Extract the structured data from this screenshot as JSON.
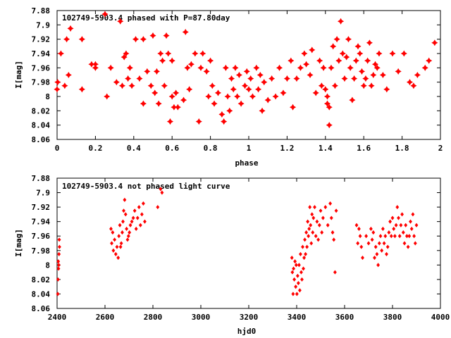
{
  "chart_data": [
    {
      "type": "scatter",
      "title": "102749-5903.4 phased with P=87.80day",
      "xlabel": "phase",
      "ylabel": "I[mag]",
      "xlim": [
        0,
        2
      ],
      "ylim": [
        8.06,
        7.88
      ],
      "x_ticks": [
        "0",
        "0.2",
        "0.4",
        "0.6",
        "0.8",
        "1",
        "1.2",
        "1.4",
        "1.6",
        "1.8",
        "2"
      ],
      "y_ticks": [
        "7.88",
        "7.9",
        "7.92",
        "7.94",
        "7.96",
        "7.98",
        "8",
        "8.02",
        "8.04",
        "8.06"
      ],
      "marker_color": "#ff0000",
      "grid": false,
      "points": [
        [
          0.0,
          7.99
        ],
        [
          0.003,
          7.98
        ],
        [
          0.02,
          7.94
        ],
        [
          0.04,
          7.985
        ],
        [
          0.05,
          7.92
        ],
        [
          0.06,
          7.97
        ],
        [
          0.07,
          7.905
        ],
        [
          0.13,
          7.92
        ],
        [
          0.13,
          7.99
        ],
        [
          0.18,
          7.955
        ],
        [
          0.2,
          7.955
        ],
        [
          0.2,
          7.96
        ],
        [
          0.25,
          7.885
        ],
        [
          0.26,
          8.0
        ],
        [
          0.28,
          7.96
        ],
        [
          0.31,
          7.98
        ],
        [
          0.33,
          7.895
        ],
        [
          0.34,
          7.985
        ],
        [
          0.35,
          7.945
        ],
        [
          0.36,
          7.94
        ],
        [
          0.37,
          7.975
        ],
        [
          0.38,
          7.96
        ],
        [
          0.39,
          7.985
        ],
        [
          0.41,
          7.92
        ],
        [
          0.43,
          7.975
        ],
        [
          0.45,
          8.01
        ],
        [
          0.45,
          7.92
        ],
        [
          0.47,
          7.965
        ],
        [
          0.49,
          7.985
        ],
        [
          0.5,
          7.915
        ],
        [
          0.51,
          7.995
        ],
        [
          0.52,
          7.965
        ],
        [
          0.53,
          8.01
        ],
        [
          0.54,
          7.94
        ],
        [
          0.55,
          7.95
        ],
        [
          0.56,
          7.985
        ],
        [
          0.57,
          7.915
        ],
        [
          0.58,
          7.94
        ],
        [
          0.59,
          8.035
        ],
        [
          0.6,
          8.0
        ],
        [
          0.6,
          7.95
        ],
        [
          0.61,
          8.015
        ],
        [
          0.62,
          7.995
        ],
        [
          0.63,
          8.015
        ],
        [
          0.66,
          8.005
        ],
        [
          0.67,
          7.91
        ],
        [
          0.68,
          7.96
        ],
        [
          0.69,
          7.99
        ],
        [
          0.7,
          7.955
        ],
        [
          0.72,
          7.94
        ],
        [
          0.74,
          8.035
        ],
        [
          0.75,
          7.96
        ],
        [
          0.76,
          7.94
        ],
        [
          0.78,
          7.965
        ],
        [
          0.79,
          8.0
        ],
        [
          0.8,
          7.95
        ],
        [
          0.81,
          7.985
        ],
        [
          0.82,
          8.01
        ],
        [
          0.84,
          7.995
        ],
        [
          0.86,
          8.025
        ],
        [
          0.87,
          8.035
        ],
        [
          0.88,
          7.96
        ],
        [
          0.89,
          8.0
        ],
        [
          0.9,
          8.02
        ],
        [
          0.91,
          7.975
        ],
        [
          0.92,
          7.99
        ],
        [
          0.93,
          7.96
        ],
        [
          0.94,
          8.0
        ],
        [
          0.95,
          7.97
        ],
        [
          0.96,
          8.01
        ],
        [
          0.98,
          7.985
        ],
        [
          0.99,
          7.965
        ],
        [
          1.0,
          7.99
        ],
        [
          1.01,
          7.975
        ],
        [
          1.02,
          8.0
        ],
        [
          1.04,
          7.96
        ],
        [
          1.05,
          7.99
        ],
        [
          1.06,
          7.97
        ],
        [
          1.07,
          8.02
        ],
        [
          1.08,
          7.98
        ],
        [
          1.1,
          8.005
        ],
        [
          1.12,
          7.975
        ],
        [
          1.14,
          8.0
        ],
        [
          1.16,
          7.96
        ],
        [
          1.18,
          7.995
        ],
        [
          1.2,
          7.975
        ],
        [
          1.22,
          7.95
        ],
        [
          1.23,
          8.015
        ],
        [
          1.25,
          7.975
        ],
        [
          1.27,
          7.96
        ],
        [
          1.29,
          7.94
        ],
        [
          1.3,
          7.955
        ],
        [
          1.32,
          7.97
        ],
        [
          1.33,
          7.935
        ],
        [
          1.35,
          7.995
        ],
        [
          1.37,
          7.95
        ],
        [
          1.38,
          7.985
        ],
        [
          1.39,
          7.96
        ],
        [
          1.4,
          7.99
        ],
        [
          1.41,
          8.0
        ],
        [
          1.41,
          8.01
        ],
        [
          1.42,
          8.015
        ],
        [
          1.42,
          8.04
        ],
        [
          1.43,
          7.96
        ],
        [
          1.44,
          7.93
        ],
        [
          1.45,
          7.985
        ],
        [
          1.46,
          7.92
        ],
        [
          1.47,
          7.95
        ],
        [
          1.48,
          7.895
        ],
        [
          1.49,
          7.94
        ],
        [
          1.5,
          7.975
        ],
        [
          1.51,
          7.945
        ],
        [
          1.52,
          7.92
        ],
        [
          1.53,
          7.96
        ],
        [
          1.54,
          8.005
        ],
        [
          1.55,
          7.975
        ],
        [
          1.56,
          7.95
        ],
        [
          1.57,
          7.93
        ],
        [
          1.58,
          7.94
        ],
        [
          1.59,
          7.965
        ],
        [
          1.6,
          7.985
        ],
        [
          1.61,
          7.975
        ],
        [
          1.62,
          7.95
        ],
        [
          1.63,
          7.925
        ],
        [
          1.64,
          7.985
        ],
        [
          1.65,
          7.97
        ],
        [
          1.66,
          7.955
        ],
        [
          1.67,
          7.96
        ],
        [
          1.68,
          7.94
        ],
        [
          1.7,
          7.97
        ],
        [
          1.72,
          7.99
        ],
        [
          1.75,
          7.94
        ],
        [
          1.78,
          7.965
        ],
        [
          1.81,
          7.94
        ],
        [
          1.84,
          7.98
        ],
        [
          1.86,
          7.985
        ],
        [
          1.88,
          7.97
        ],
        [
          1.92,
          7.96
        ],
        [
          1.94,
          7.95
        ],
        [
          1.97,
          7.925
        ]
      ]
    },
    {
      "type": "scatter",
      "title": "102749-5903.4 not phased light curve",
      "xlabel": "hjd0",
      "ylabel": "I[mag]",
      "xlim": [
        2400,
        4000
      ],
      "ylim": [
        8.06,
        7.88
      ],
      "x_ticks": [
        "2400",
        "2600",
        "2800",
        "3000",
        "3200",
        "3400",
        "3600",
        "3800",
        "4000"
      ],
      "y_ticks": [
        "7.88",
        "7.9",
        "7.92",
        "7.94",
        "7.96",
        "7.98",
        "8",
        "8.02",
        "8.04",
        "8.06"
      ],
      "marker_color": "#ff0000",
      "grid": false,
      "points": [
        [
          2403,
          8.04
        ],
        [
          2404,
          8.02
        ],
        [
          2405,
          7.995
        ],
        [
          2406,
          8.005
        ],
        [
          2407,
          8.0
        ],
        [
          2408,
          7.985
        ],
        [
          2409,
          7.965
        ],
        [
          2410,
          7.975
        ],
        [
          2625,
          7.95
        ],
        [
          2628,
          7.97
        ],
        [
          2632,
          7.955
        ],
        [
          2635,
          7.98
        ],
        [
          2640,
          7.965
        ],
        [
          2645,
          7.985
        ],
        [
          2650,
          7.975
        ],
        [
          2655,
          7.99
        ],
        [
          2658,
          7.96
        ],
        [
          2662,
          7.945
        ],
        [
          2665,
          7.975
        ],
        [
          2668,
          7.97
        ],
        [
          2672,
          7.955
        ],
        [
          2675,
          7.94
        ],
        [
          2678,
          7.925
        ],
        [
          2682,
          7.91
        ],
        [
          2686,
          7.93
        ],
        [
          2690,
          7.95
        ],
        [
          2694,
          7.965
        ],
        [
          2698,
          7.96
        ],
        [
          2702,
          7.955
        ],
        [
          2706,
          7.945
        ],
        [
          2712,
          7.94
        ],
        [
          2718,
          7.935
        ],
        [
          2724,
          7.925
        ],
        [
          2730,
          7.95
        ],
        [
          2736,
          7.935
        ],
        [
          2742,
          7.92
        ],
        [
          2748,
          7.945
        ],
        [
          2754,
          7.93
        ],
        [
          2760,
          7.915
        ],
        [
          2766,
          7.94
        ],
        [
          2820,
          7.92
        ],
        [
          2832,
          7.895
        ],
        [
          2838,
          7.9
        ],
        [
          3380,
          7.99
        ],
        [
          3382,
          8.01
        ],
        [
          3385,
          8.04
        ],
        [
          3387,
          8.005
        ],
        [
          3390,
          8.02
        ],
        [
          3393,
          7.995
        ],
        [
          3396,
          8.03
        ],
        [
          3398,
          8.0
        ],
        [
          3401,
          8.04
        ],
        [
          3404,
          8.015
        ],
        [
          3407,
          8.025
        ],
        [
          3410,
          8.0
        ],
        [
          3413,
          8.035
        ],
        [
          3416,
          7.985
        ],
        [
          3419,
          8.01
        ],
        [
          3422,
          8.02
        ],
        [
          3425,
          7.975
        ],
        [
          3428,
          8.005
        ],
        [
          3431,
          7.99
        ],
        [
          3434,
          7.965
        ],
        [
          3437,
          7.985
        ],
        [
          3440,
          7.955
        ],
        [
          3443,
          7.975
        ],
        [
          3446,
          7.94
        ],
        [
          3449,
          7.96
        ],
        [
          3452,
          7.95
        ],
        [
          3455,
          7.92
        ],
        [
          3458,
          7.945
        ],
        [
          3461,
          7.97
        ],
        [
          3464,
          7.93
        ],
        [
          3467,
          7.955
        ],
        [
          3470,
          7.935
        ],
        [
          3475,
          7.92
        ],
        [
          3480,
          7.96
        ],
        [
          3485,
          7.94
        ],
        [
          3490,
          7.965
        ],
        [
          3495,
          7.945
        ],
        [
          3500,
          7.925
        ],
        [
          3505,
          7.955
        ],
        [
          3510,
          7.935
        ],
        [
          3520,
          7.92
        ],
        [
          3530,
          7.945
        ],
        [
          3540,
          7.915
        ],
        [
          3545,
          7.935
        ],
        [
          3550,
          7.955
        ],
        [
          3555,
          7.965
        ],
        [
          3560,
          8.01
        ],
        [
          3565,
          7.925
        ],
        [
          3650,
          7.945
        ],
        [
          3655,
          7.97
        ],
        [
          3660,
          7.95
        ],
        [
          3665,
          7.96
        ],
        [
          3670,
          7.975
        ],
        [
          3675,
          7.99
        ],
        [
          3690,
          7.96
        ],
        [
          3700,
          7.97
        ],
        [
          3710,
          7.95
        ],
        [
          3715,
          7.965
        ],
        [
          3720,
          7.955
        ],
        [
          3725,
          7.99
        ],
        [
          3730,
          7.975
        ],
        [
          3735,
          7.985
        ],
        [
          3740,
          8.0
        ],
        [
          3745,
          7.97
        ],
        [
          3750,
          7.96
        ],
        [
          3755,
          7.98
        ],
        [
          3760,
          7.95
        ],
        [
          3765,
          7.97
        ],
        [
          3770,
          7.96
        ],
        [
          3775,
          7.985
        ],
        [
          3780,
          7.975
        ],
        [
          3785,
          7.955
        ],
        [
          3790,
          7.94
        ],
        [
          3795,
          7.96
        ],
        [
          3800,
          7.935
        ],
        [
          3805,
          7.95
        ],
        [
          3810,
          7.96
        ],
        [
          3815,
          7.945
        ],
        [
          3820,
          7.92
        ],
        [
          3825,
          7.935
        ],
        [
          3830,
          7.96
        ],
        [
          3835,
          7.945
        ],
        [
          3840,
          7.93
        ],
        [
          3845,
          7.955
        ],
        [
          3850,
          7.97
        ],
        [
          3855,
          7.945
        ],
        [
          3860,
          7.96
        ],
        [
          3865,
          7.975
        ],
        [
          3870,
          7.96
        ],
        [
          3875,
          7.94
        ],
        [
          3880,
          7.95
        ],
        [
          3885,
          7.93
        ],
        [
          3890,
          7.96
        ],
        [
          3895,
          7.97
        ],
        [
          3900,
          7.945
        ]
      ]
    }
  ]
}
